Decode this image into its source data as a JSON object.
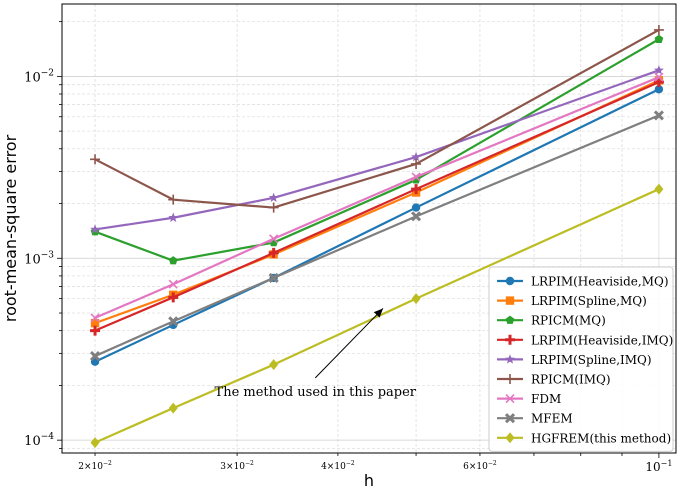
{
  "chart_data": {
    "type": "line",
    "xlabel": "h",
    "ylabel": "root-mean-square error",
    "x_scale": "log",
    "y_scale": "log",
    "xlim": [
      0.0182,
      0.105
    ],
    "ylim": [
      8.5e-05,
      0.025
    ],
    "grid": "on (major and minor)",
    "legend_position": "lower-right",
    "x": [
      0.02,
      0.025,
      0.0333,
      0.05,
      0.1
    ],
    "x_ticks": [
      {
        "value": 0.02,
        "base": "2×10",
        "exp": "−2"
      },
      {
        "value": 0.03,
        "base": "3×10",
        "exp": "−2"
      },
      {
        "value": 0.04,
        "base": "4×10",
        "exp": "−2"
      },
      {
        "value": 0.06,
        "base": "6×10",
        "exp": "−2"
      },
      {
        "value": 0.1,
        "base": "10",
        "exp": "−1"
      }
    ],
    "y_ticks": [
      {
        "value": 0.0001,
        "base": "10",
        "exp": "−4"
      },
      {
        "value": 0.001,
        "base": "10",
        "exp": "−3"
      },
      {
        "value": 0.01,
        "base": "10",
        "exp": "−2"
      }
    ],
    "series": [
      {
        "name": "LRPIM(Heaviside,MQ)",
        "color": "#1f77b4",
        "marker": "circle",
        "values": [
          0.00027,
          0.00043,
          0.00078,
          0.0019,
          0.0085
        ]
      },
      {
        "name": "LRPIM(Spline,MQ)",
        "color": "#ff7f0e",
        "marker": "square",
        "values": [
          0.00044,
          0.00063,
          0.00105,
          0.0023,
          0.0095
        ]
      },
      {
        "name": "RPICM(MQ)",
        "color": "#2ca02c",
        "marker": "pentagon",
        "values": [
          0.0014,
          0.00097,
          0.00122,
          0.0027,
          0.016
        ]
      },
      {
        "name": "LRPIM(Heaviside,IMQ)",
        "color": "#d62728",
        "marker": "plus",
        "values": [
          0.0004,
          0.00061,
          0.00107,
          0.0024,
          0.0093
        ]
      },
      {
        "name": "LRPIM(Spline,IMQ)",
        "color": "#9467bd",
        "marker": "star",
        "values": [
          0.00144,
          0.00167,
          0.00215,
          0.0036,
          0.0108
        ]
      },
      {
        "name": "RPICM(IMQ)",
        "color": "#8c564b",
        "marker": "thinplus",
        "values": [
          0.0035,
          0.0021,
          0.0019,
          0.0033,
          0.018
        ]
      },
      {
        "name": "FDM",
        "color": "#e377c2",
        "marker": "x",
        "values": [
          0.00047,
          0.00072,
          0.00128,
          0.0028,
          0.0099
        ]
      },
      {
        "name": "MFEM",
        "color": "#7f7f7f",
        "marker": "xbold",
        "values": [
          0.00029,
          0.00045,
          0.00078,
          0.0017,
          0.0061
        ]
      },
      {
        "name": "HGFREM(this method)",
        "color": "#bcbd22",
        "marker": "diamond",
        "values": [
          9.7e-05,
          0.00015,
          0.00026,
          0.0006,
          0.0024
        ]
      }
    ],
    "annotation": {
      "text": "The method used in this paper",
      "xy": [
        0.0455,
        0.00053
      ],
      "text_xy": [
        0.0375,
        0.00022
      ]
    }
  }
}
